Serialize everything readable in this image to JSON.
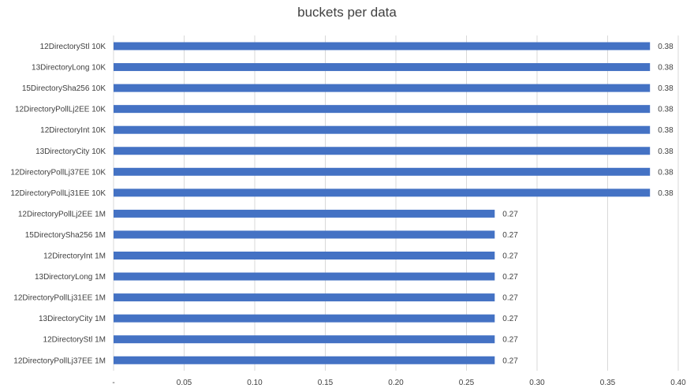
{
  "chart_data": {
    "type": "bar",
    "orientation": "horizontal",
    "title": "buckets per data",
    "xlabel": "",
    "ylabel": "",
    "xlim": [
      0,
      0.4
    ],
    "x_ticks": [
      "-",
      "0.05",
      "0.10",
      "0.15",
      "0.20",
      "0.25",
      "0.30",
      "0.35",
      "0.40"
    ],
    "x_tick_values": [
      0,
      0.05,
      0.1,
      0.15,
      0.2,
      0.25,
      0.3,
      0.35,
      0.4
    ],
    "grid": true,
    "legend": "none",
    "bar_color": "#4472c4",
    "categories": [
      "12DirectoryStl 10K",
      "13DirectoryLong 10K",
      "15DirectorySha256 10K",
      "12DirectoryPollLj2EE 10K",
      "12DirectoryInt 10K",
      "13DirectoryCity 10K",
      "12DirectoryPollLj37EE 10K",
      "12DirectoryPollLj31EE 10K",
      "12DirectoryPollLj2EE 1M",
      "15DirectorySha256 1M",
      "12DirectoryInt 1M",
      "13DirectoryLong 1M",
      "12DirectoryPollLj31EE 1M",
      "13DirectoryCity 1M",
      "12DirectoryStl 1M",
      "12DirectoryPollLj37EE 1M"
    ],
    "values": [
      0.38,
      0.38,
      0.38,
      0.38,
      0.38,
      0.38,
      0.38,
      0.38,
      0.27,
      0.27,
      0.27,
      0.27,
      0.27,
      0.27,
      0.27,
      0.27
    ],
    "data_labels": [
      "0.38",
      "0.38",
      "0.38",
      "0.38",
      "0.38",
      "0.38",
      "0.38",
      "0.38",
      "0.27",
      "0.27",
      "0.27",
      "0.27",
      "0.27",
      "0.27",
      "0.27",
      "0.27"
    ]
  }
}
